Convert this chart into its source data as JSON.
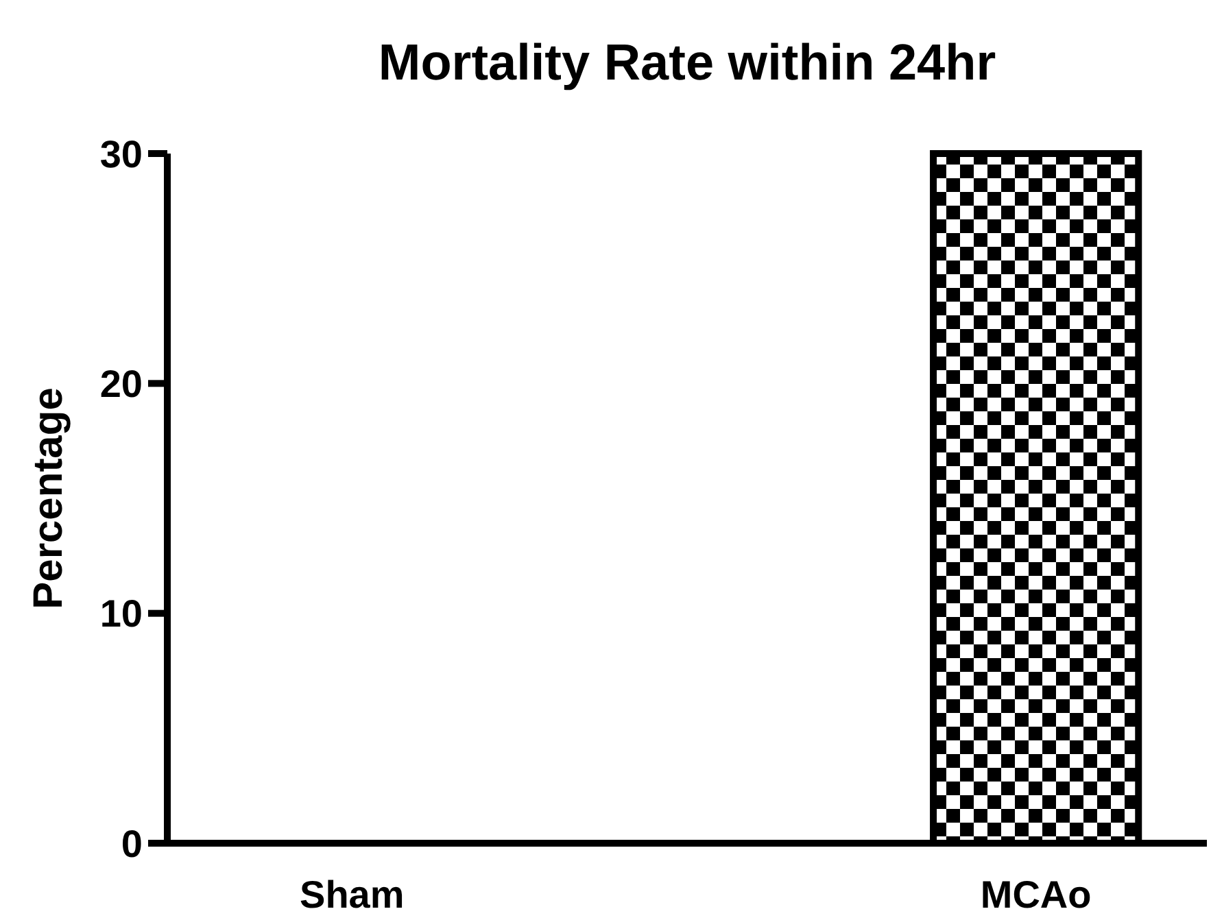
{
  "chart_data": {
    "type": "bar",
    "title": "Mortality Rate within 24hr",
    "ylabel": "Percentage",
    "categories": [
      "Sham",
      "MCAo"
    ],
    "values": [
      0,
      30
    ],
    "color": "#000000",
    "ylim": [
      0,
      30
    ],
    "yticks": [
      0,
      10,
      20,
      30
    ],
    "grid": false
  }
}
